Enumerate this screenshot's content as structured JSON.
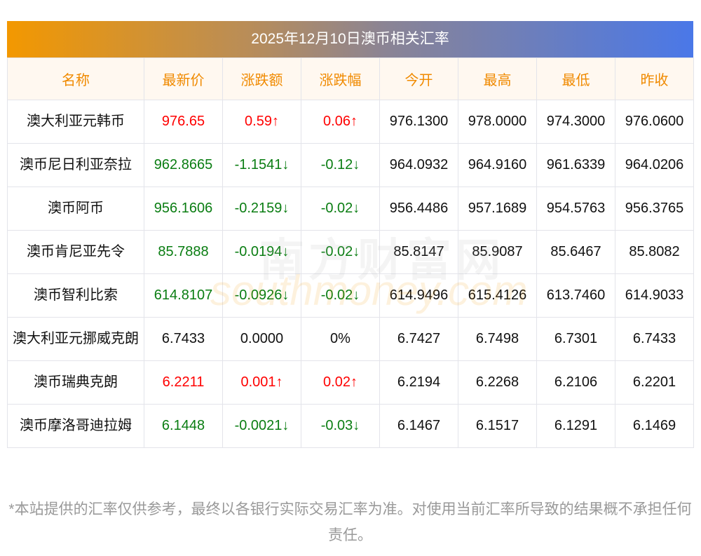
{
  "title": "2025年12月10日澳币相关汇率",
  "headers": [
    "名称",
    "最新价",
    "涨跌额",
    "涨跌幅",
    "今开",
    "最高",
    "最低",
    "昨收"
  ],
  "rows": [
    {
      "name": "澳大利亚元韩币",
      "latest": "976.65",
      "change": "0.59↑",
      "pct": "0.06↑",
      "open": "976.1300",
      "high": "978.0000",
      "low": "974.3000",
      "prev": "976.0600",
      "trend": "up"
    },
    {
      "name": "澳币尼日利亚奈拉",
      "latest": "962.8665",
      "change": "-1.1541↓",
      "pct": "-0.12↓",
      "open": "964.0932",
      "high": "964.9160",
      "low": "961.6339",
      "prev": "964.0206",
      "trend": "down"
    },
    {
      "name": "澳币阿币",
      "latest": "956.1606",
      "change": "-0.2159↓",
      "pct": "-0.02↓",
      "open": "956.4486",
      "high": "957.1689",
      "low": "954.5763",
      "prev": "956.3765",
      "trend": "down"
    },
    {
      "name": "澳币肯尼亚先令",
      "latest": "85.7888",
      "change": "-0.0194↓",
      "pct": "-0.02↓",
      "open": "85.8147",
      "high": "85.9087",
      "low": "85.6467",
      "prev": "85.8082",
      "trend": "down"
    },
    {
      "name": "澳币智利比索",
      "latest": "614.8107",
      "change": "-0.0926↓",
      "pct": "-0.02↓",
      "open": "614.9496",
      "high": "615.4126",
      "low": "613.7460",
      "prev": "614.9033",
      "trend": "down"
    },
    {
      "name": "澳大利亚元挪威克朗",
      "latest": "6.7433",
      "change": "0.0000",
      "pct": "0%",
      "open": "6.7427",
      "high": "6.7498",
      "low": "6.7301",
      "prev": "6.7433",
      "trend": "flat"
    },
    {
      "name": "澳币瑞典克朗",
      "latest": "6.2211",
      "change": "0.001↑",
      "pct": "0.02↑",
      "open": "6.2194",
      "high": "6.2268",
      "low": "6.2106",
      "prev": "6.2201",
      "trend": "up"
    },
    {
      "name": "澳币摩洛哥迪拉姆",
      "latest": "6.1448",
      "change": "-0.0021↓",
      "pct": "-0.03↓",
      "open": "6.1467",
      "high": "6.1517",
      "low": "6.1291",
      "prev": "6.1469",
      "trend": "down"
    }
  ],
  "watermark": {
    "cn": "南方财富网",
    "en": "southmoney.com"
  },
  "note": "*本站提供的汇率仅供参考，最终以各银行实际交易汇率为准。对使用当前汇率所导致的结果概不承担任何责任。",
  "colors": {
    "up": "#ff0000",
    "down": "#0a7d12",
    "header_text": "#f08a00"
  }
}
